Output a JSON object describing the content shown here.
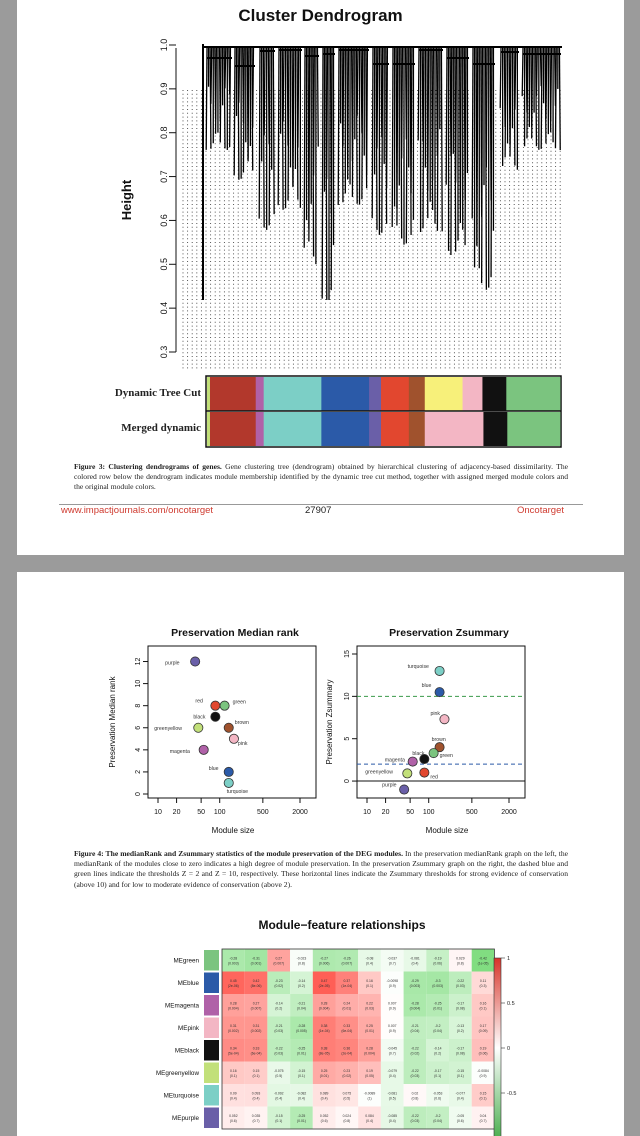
{
  "page1": {
    "fig_title": "Cluster Dendrogram",
    "y_axis_title": "Height",
    "y_ticks": [
      "1.0",
      "0.9",
      "0.8",
      "0.7",
      "0.6",
      "0.5",
      "0.4",
      "0.3"
    ],
    "color_rows": [
      "Dynamic Tree Cut",
      "Merged dynamic"
    ],
    "caption_lead": "Figure 3: Clustering dendrograms of genes.",
    "caption_body": " Gene clustering tree (dendrogram) obtained by hierarchical clustering of adjacency-based dissimilarity. The colored row below the dendrogram indicates module membership identified by the dynamic tree cut method, together with assigned merged module colors and the original module colors.",
    "footer": {
      "url": "www.impactjournals.com/oncotarget",
      "page_number": "27907",
      "journal": "Oncotarget"
    }
  },
  "page2": {
    "left_panel": {
      "title": "Preservation Median rank",
      "ylabel": "Preservation Median rank",
      "xlabel": "Module size",
      "y_ticks": [
        "0",
        "2",
        "4",
        "6",
        "8",
        "10",
        "12"
      ],
      "x_ticks": [
        "10",
        "20",
        "50",
        "100",
        "500",
        "2000"
      ]
    },
    "right_panel": {
      "title": "Preservation Zsummary",
      "ylabel": "Preservation Zsummary",
      "xlabel": "Module size",
      "y_ticks": [
        "0",
        "5",
        "10",
        "15"
      ],
      "x_ticks": [
        "10",
        "20",
        "50",
        "100",
        "500",
        "2000"
      ]
    },
    "caption_lead": "Figure 4: The medianRank and Zsummary statistics of the module preservation of the DEG modules.",
    "caption_body": " In the preservation medianRank graph on the left, the medianRank of the modules close to zero indicates a high degree of module preservation. In the preservation Zsummary graph on the right, the dashed blue and green lines indicate the thresholds Z = 2 and Z = 10, respectively. These horizontal lines indicate the Zsummary thresholds for strong evidence of conservation (above 10) and for low to moderate evidence of conservation (above 2).",
    "heatmap_title": "Module−feature relationships",
    "heatmap_rows": [
      "MEgreen",
      "MEblue",
      "MEmagenta",
      "MEpink",
      "MEblack",
      "MEgreenyellow",
      "MEturquoise",
      "MEpurple"
    ],
    "heatmap_cells": [
      [
        "-0.28\n(0.003)",
        "-0.31\n(0.001)",
        "0.27\n(0.007)",
        "-0.023\n(0.8)",
        "-0.27\n(0.006)",
        "-0.26\n(0.007)",
        "-0.08\n(0.4)",
        "-0.037\n(0.7)",
        "-0.081\n(0.4)",
        "-0.19\n(0.06)",
        "0.029\n(0.8)",
        "-0.42\n(1e-05)"
      ],
      [
        "0.45\n(2e-06)",
        "0.42\n(8e-06)",
        "-0.23\n(0.02)",
        "-0.14\n(0.2)",
        "0.47\n(2e-05)",
        "0.37\n(1e-04)",
        "0.16\n(0.1)",
        "-0.0098\n(0.9)",
        "-0.29\n(0.003)",
        "-0.3\n(0.003)",
        "-0.22\n(0.03)",
        "0.11\n(0.3)"
      ],
      [
        "0.28\n(0.004)",
        "0.27\n(0.007)",
        "-0.14\n(0.2)",
        "-0.21\n(0.04)",
        "0.28\n(0.004)",
        "0.24\n(0.01)",
        "0.22\n(0.03)",
        "0.007\n(0.9)",
        "-0.28\n(0.004)",
        "-0.25\n(0.01)",
        "-0.17\n(0.08)",
        "0.16\n(0.1)"
      ],
      [
        "0.31\n(0.002)",
        "0.31\n(0.002)",
        "-0.21\n(0.03)",
        "-0.28\n(0.005)",
        "0.38\n(1e-04)",
        "0.33\n(6e-04)",
        "0.25\n(0.01)",
        "0.007\n(0.9)",
        "-0.21\n(0.04)",
        "-0.2\n(0.04)",
        "-0.13\n(0.2)",
        "0.17\n(0.09)"
      ],
      [
        "0.34\n(5e-04)",
        "0.33\n(6e-04)",
        "-0.22\n(0.03)",
        "-0.25\n(0.01)",
        "0.38\n(8e-05)",
        "0.36\n(2e-04)",
        "0.28\n(0.004)",
        "-0.045\n(0.7)",
        "-0.22\n(0.02)",
        "-0.14\n(0.2)",
        "-0.17\n(0.08)",
        "0.19\n(0.06)"
      ],
      [
        "0.16\n(0.1)",
        "0.15\n(0.1)",
        "-0.075\n(0.5)",
        "-0.15\n(0.1)",
        "0.25\n(0.01)",
        "0.23\n(0.02)",
        "0.19\n(0.05)",
        "-0.079\n(0.4)",
        "-0.22\n(0.03)",
        "-0.17\n(0.1)",
        "-0.15\n(0.1)",
        "-0.0084\n(0.9)"
      ],
      [
        "0.09\n(0.4)",
        "0.093\n(0.4)",
        "-0.092\n(0.4)",
        "-0.082\n(0.4)",
        "0.089\n(0.4)",
        "0.075\n(0.5)",
        "-0.0089\n(1)",
        "-0.081\n(0.5)",
        "0.02\n(0.8)",
        "-0.053\n(0.6)",
        "-0.077\n(0.4)",
        "0.15\n(0.1)"
      ],
      [
        "0.052\n(0.6)",
        "0.035\n(0.7)",
        "-0.15\n(0.1)",
        "-0.25\n(0.01)",
        "0.052\n(0.6)",
        "0.024\n(0.8)",
        "0.084\n(0.4)",
        "-0.085\n(0.4)",
        "-0.22\n(0.03)",
        "-0.2\n(0.04)",
        "-0.05\n(0.6)",
        "0.04\n(0.7)"
      ]
    ],
    "colorbar_ticks": [
      "1",
      "0.5",
      "0",
      "-0.5"
    ]
  },
  "chart_data": [
    {
      "type": "scatter",
      "title": "Preservation Median rank",
      "xlabel": "Module size",
      "ylabel": "Preservation Median rank",
      "x_scale": "log",
      "ylim": [
        0,
        12.5
      ],
      "points": [
        {
          "label": "purple",
          "x": 40,
          "y": 12,
          "color": "#6a5fa8"
        },
        {
          "label": "red",
          "x": 85,
          "y": 8,
          "color": "#e2472f"
        },
        {
          "label": "green",
          "x": 120,
          "y": 8,
          "color": "#7bc47f"
        },
        {
          "label": "black",
          "x": 85,
          "y": 7,
          "color": "#111111"
        },
        {
          "label": "brown",
          "x": 140,
          "y": 6,
          "color": "#a0522d"
        },
        {
          "label": "greenyellow",
          "x": 45,
          "y": 6,
          "color": "#c2e07a"
        },
        {
          "label": "pink",
          "x": 170,
          "y": 5,
          "color": "#f3b6c4"
        },
        {
          "label": "magenta",
          "x": 55,
          "y": 4,
          "color": "#b061a8"
        },
        {
          "label": "blue",
          "x": 140,
          "y": 2,
          "color": "#2b5aa8"
        },
        {
          "label": "turquoise",
          "x": 140,
          "y": 1,
          "color": "#7ccfc6"
        }
      ]
    },
    {
      "type": "scatter",
      "title": "Preservation Zsummary",
      "xlabel": "Module size",
      "ylabel": "Preservation Zsummary",
      "x_scale": "log",
      "ylim": [
        -2,
        15
      ],
      "thresholds": [
        {
          "y": 2,
          "style": "dashed",
          "color": "#2b5aa8"
        },
        {
          "y": 10,
          "style": "dashed",
          "color": "#3a9a4a"
        }
      ],
      "points": [
        {
          "label": "turquoise",
          "x": 150,
          "y": 13,
          "color": "#7ccfc6"
        },
        {
          "label": "blue",
          "x": 150,
          "y": 10.5,
          "color": "#2b5aa8"
        },
        {
          "label": "pink",
          "x": 180,
          "y": 7.3,
          "color": "#f3b6c4"
        },
        {
          "label": "brown",
          "x": 150,
          "y": 4,
          "color": "#a0522d"
        },
        {
          "label": "green",
          "x": 120,
          "y": 3.3,
          "color": "#7bc47f"
        },
        {
          "label": "black",
          "x": 85,
          "y": 2.6,
          "color": "#111111"
        },
        {
          "label": "magenta",
          "x": 55,
          "y": 2.3,
          "color": "#b061a8"
        },
        {
          "label": "greenyellow",
          "x": 45,
          "y": 0.9,
          "color": "#c2e07a"
        },
        {
          "label": "red",
          "x": 85,
          "y": 1,
          "color": "#e2472f"
        },
        {
          "label": "purple",
          "x": 40,
          "y": -1,
          "color": "#6a5fa8"
        }
      ]
    }
  ],
  "colors": {
    "module_strip_top": [
      "#c2e07a",
      "#b2382c",
      "#b061a8",
      "#7ccfc6",
      "#2b5aa8",
      "#6a5fa8",
      "#e2472f",
      "#a0522d",
      "#f7f07a",
      "#f3b6c4",
      "#111111",
      "#7bc47f"
    ],
    "module_strip_bottom": [
      "#c2e07a",
      "#b2382c",
      "#b061a8",
      "#7ccfc6",
      "#2b5aa8",
      "#6a5fa8",
      "#e2472f",
      "#a0522d",
      "#f3b6c4",
      "#111111",
      "#7bc47f"
    ],
    "heat_pos": "#d7342a",
    "heat_neg": "#4caf50"
  }
}
